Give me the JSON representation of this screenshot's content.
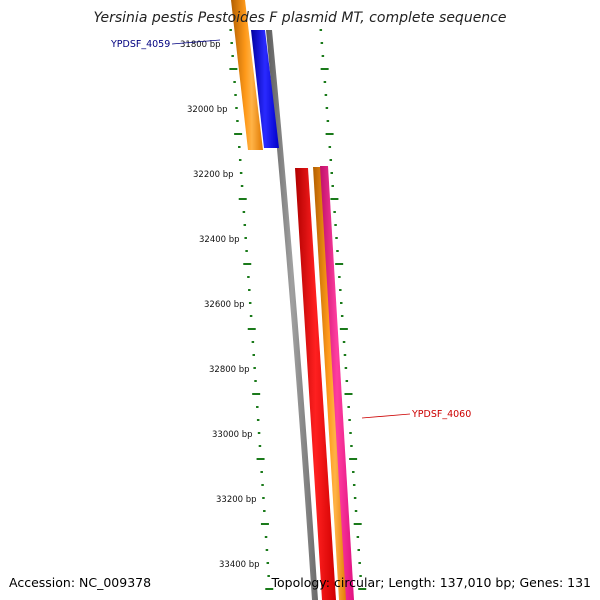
{
  "title": "Yersinia pestis Pestoides F plasmid MT, complete sequence",
  "footer": {
    "accession": "Accession: NC_009378",
    "summary": "Topology: circular; Length: 137,010 bp; Genes: 131"
  },
  "ticks": [
    {
      "label": "31800 bp"
    },
    {
      "label": "32000 bp"
    },
    {
      "label": "32200 bp"
    },
    {
      "label": "32400 bp"
    },
    {
      "label": "32600 bp"
    },
    {
      "label": "32800 bp"
    },
    {
      "label": "33000 bp"
    },
    {
      "label": "33200 bp"
    },
    {
      "label": "33400 bp"
    }
  ],
  "gene_labels": [
    {
      "name": "YPDSF_4059",
      "color": "#000080"
    },
    {
      "name": "YPDSF_4060",
      "color": "#cc0000"
    }
  ],
  "colors": {
    "tick": "#1a7a1a",
    "backbone": "#808080",
    "orange": "#ff8c00",
    "blue": "#0000ff",
    "red": "#ff0000",
    "magenta": "#ff1493"
  }
}
